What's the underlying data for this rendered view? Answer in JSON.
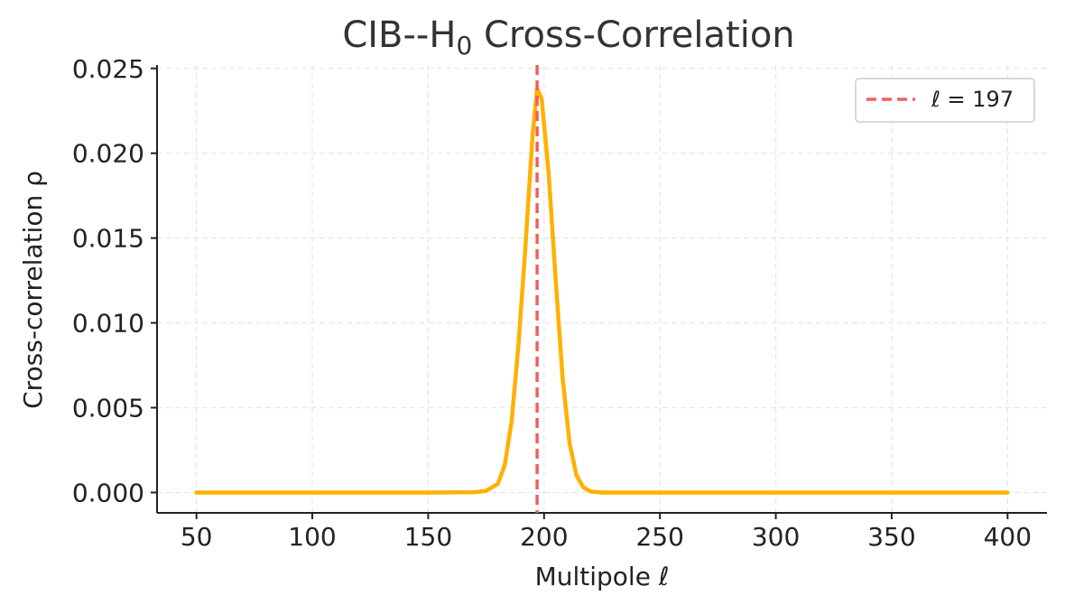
{
  "chart_data": {
    "type": "line",
    "title": "CIB--H",
    "title_subscript": "0",
    "title_suffix": " Cross-Correlation",
    "xlabel": "Multipole ℓ",
    "ylabel": "Cross-correlation ρ",
    "xlim": [
      33,
      417
    ],
    "ylim": [
      -0.0012,
      0.0252
    ],
    "x_ticks": [
      50,
      100,
      150,
      200,
      250,
      300,
      350,
      400
    ],
    "x_tick_labels": [
      "50",
      "100",
      "150",
      "200",
      "250",
      "300",
      "350",
      "400"
    ],
    "y_ticks": [
      0.0,
      0.005,
      0.01,
      0.015,
      0.02,
      0.025
    ],
    "y_tick_labels": [
      "0.000",
      "0.005",
      "0.010",
      "0.015",
      "0.020",
      "0.025"
    ],
    "grid": true,
    "legend_position": "top-right",
    "series": [
      {
        "x": [
          50,
          100,
          150,
          170,
          175,
          180,
          183,
          186,
          189,
          192,
          195,
          197,
          199,
          202,
          205,
          208,
          211,
          214,
          217,
          220,
          225,
          250,
          300,
          350,
          400
        ],
        "values": [
          0.0,
          0.0,
          0.0,
          2e-05,
          0.0001,
          0.0005,
          0.0016,
          0.0042,
          0.0088,
          0.0146,
          0.021,
          0.0238,
          0.0232,
          0.0188,
          0.0126,
          0.0068,
          0.0029,
          0.001,
          0.0003,
          6e-05,
          0.0,
          0.0,
          0.0,
          0.0,
          0.0
        ],
        "color": "#FFB000"
      }
    ],
    "vline": {
      "x": 197,
      "label": "ℓ = 197",
      "color": "#F06060"
    }
  }
}
